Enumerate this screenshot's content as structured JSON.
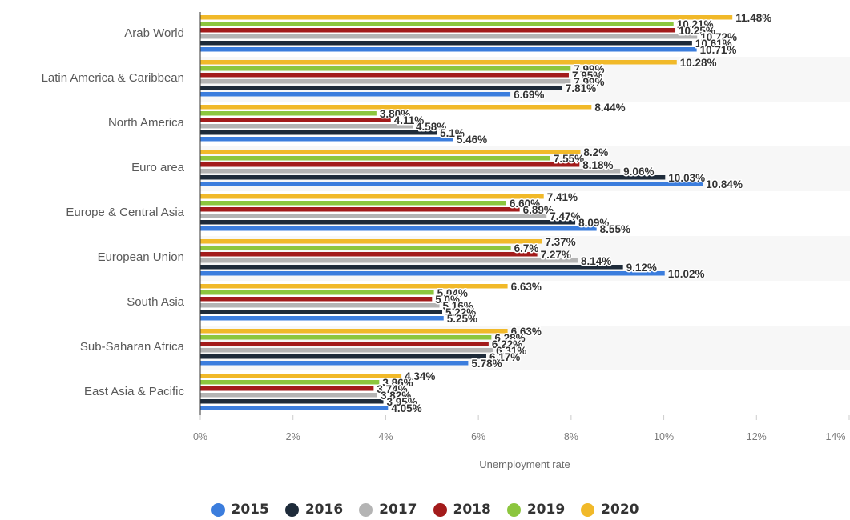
{
  "chart_data": {
    "type": "bar",
    "orientation": "horizontal",
    "xlabel": "Unemployment rate",
    "xlim": [
      0,
      14
    ],
    "ticks": [
      "0%",
      "2%",
      "4%",
      "6%",
      "8%",
      "10%",
      "12%",
      "14%"
    ],
    "grid": false,
    "legend_position": "bottom",
    "categories": [
      "Arab World",
      "Latin America & Caribbean",
      "North America",
      "Euro area",
      "Europe & Central Asia",
      "European Union",
      "South Asia",
      "Sub-Saharan Africa",
      "East Asia & Pacific"
    ],
    "series": [
      {
        "name": "2020",
        "color": "#f1b929",
        "values": [
          11.48,
          10.28,
          8.44,
          8.2,
          7.41,
          7.37,
          6.63,
          6.63,
          4.34
        ],
        "labels": [
          "11.48%",
          "10.28%",
          "8.44%",
          "8.2%",
          "7.41%",
          "7.37%",
          "6.63%",
          "6.63%",
          "4.34%"
        ]
      },
      {
        "name": "2019",
        "color": "#8cc63e",
        "values": [
          10.21,
          7.99,
          3.8,
          7.55,
          6.6,
          6.7,
          5.04,
          6.28,
          3.86
        ],
        "labels": [
          "10.21%",
          "7.99%",
          "3.80%",
          "7.55%",
          "6.60%",
          "6.7%",
          "5.04%",
          "6.28%",
          "3.86%"
        ]
      },
      {
        "name": "2018",
        "color": "#a31b1b",
        "values": [
          10.25,
          7.95,
          4.11,
          8.18,
          6.89,
          7.27,
          5.0,
          6.22,
          3.74
        ],
        "labels": [
          "10.25%",
          "7.95%",
          "4.11%",
          "8.18%",
          "6.89%",
          "7.27%",
          "5.0%",
          "6.22%",
          "3.74%"
        ]
      },
      {
        "name": "2017",
        "color": "#b4b4b4",
        "values": [
          10.72,
          7.99,
          4.58,
          9.06,
          7.47,
          8.14,
          5.16,
          6.31,
          3.82
        ],
        "labels": [
          "10.72%",
          "7.99%",
          "4.58%",
          "9.06%",
          "7.47%",
          "8.14%",
          "5.16%",
          "6.31%",
          "3.82%"
        ]
      },
      {
        "name": "2016",
        "color": "#1e2b3a",
        "values": [
          10.61,
          7.81,
          5.1,
          10.03,
          8.09,
          9.12,
          5.22,
          6.17,
          3.95
        ],
        "labels": [
          "10.61%",
          "7.81%",
          "5.1%",
          "10.03%",
          "8.09%",
          "9.12%",
          "5.22%",
          "6.17%",
          "3.95%"
        ]
      },
      {
        "name": "2015",
        "color": "#3b7ddd",
        "values": [
          10.71,
          6.69,
          5.46,
          10.84,
          8.55,
          10.02,
          5.25,
          5.78,
          4.05
        ],
        "labels": [
          "10.71%",
          "6.69%",
          "5.46%",
          "10.84%",
          "8.55%",
          "10.02%",
          "5.25%",
          "5.78%",
          "4.05%"
        ]
      }
    ]
  },
  "legend": [
    {
      "label": "2015",
      "color": "#3b7ddd"
    },
    {
      "label": "2016",
      "color": "#1e2b3a"
    },
    {
      "label": "2017",
      "color": "#b4b4b4"
    },
    {
      "label": "2018",
      "color": "#a31b1b"
    },
    {
      "label": "2019",
      "color": "#8cc63e"
    },
    {
      "label": "2020",
      "color": "#f1b929"
    }
  ]
}
